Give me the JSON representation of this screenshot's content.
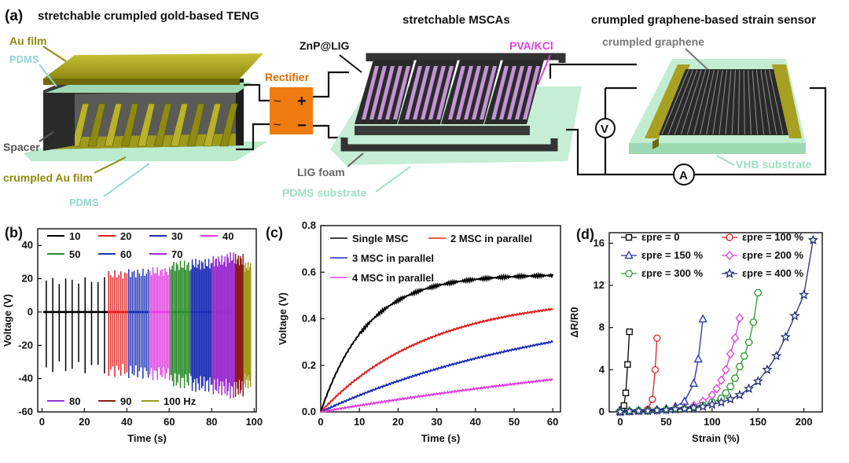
{
  "panel_a": {
    "label": "(a)",
    "teng": {
      "title": "stretchable crumpled gold-based TENG",
      "au_film": "Au film",
      "pdms_top": "PDMS",
      "spacer": "Spacer",
      "crumpled_au": "crumpled Au film",
      "pdms_bottom": "PDMS"
    },
    "rectifier": {
      "label": "Rectifier",
      "ac": "~",
      "plus": "+",
      "minus": "−"
    },
    "msca": {
      "title": "stretchable MSCAs",
      "znp": "ZnP@LIG",
      "pva": "PVA/KCl",
      "lig_foam": "LIG foam",
      "pdms_substrate": "PDMS substrate"
    },
    "sensor": {
      "title": "crumpled graphene-based strain sensor",
      "crumpled_graphene": "crumpled graphene",
      "vhb": "VHB substrate",
      "voltmeter": "V",
      "ammeter": "A"
    }
  },
  "chart_data": [
    {
      "panel": "(b)",
      "type": "line",
      "title": "",
      "xlabel": "Time (s)",
      "ylabel": "Voltage (V)",
      "xlim": [
        -2,
        101
      ],
      "ylim": [
        -60,
        50
      ],
      "xticks": [
        0,
        20,
        40,
        60,
        80,
        100
      ],
      "yticks": [
        -60,
        -40,
        -20,
        0,
        20,
        40
      ],
      "series": [
        {
          "name": "10",
          "color": "#000000",
          "t_start": 0.5,
          "t_end": 31,
          "pos": 21,
          "neg": -37
        },
        {
          "name": "20",
          "color": "#e02020",
          "t_start": 31,
          "t_end": 40.5,
          "pos": 25,
          "neg": -39
        },
        {
          "name": "30",
          "color": "#1f2fb5",
          "t_start": 40.5,
          "t_end": 50.5,
          "pos": 26,
          "neg": -40
        },
        {
          "name": "40",
          "color": "#e040e0",
          "t_start": 50.5,
          "t_end": 60.5,
          "pos": 27,
          "neg": -41
        },
        {
          "name": "50",
          "color": "#2e8b2e",
          "t_start": 60.5,
          "t_end": 70,
          "pos": 31,
          "neg": -46
        },
        {
          "name": "60",
          "color": "#1f2fb5",
          "t_start": 70,
          "t_end": 80,
          "pos": 32,
          "neg": -48
        },
        {
          "name": "70",
          "color": "#9b30d0",
          "t_start": 80,
          "t_end": 87,
          "pos": 34,
          "neg": -50
        },
        {
          "name": "80",
          "color": "#9b30d0",
          "t_start": 87,
          "t_end": 91,
          "pos": 36,
          "neg": -52
        },
        {
          "name": "90",
          "color": "#8b1a1a",
          "t_start": 91,
          "t_end": 95,
          "pos": 35,
          "neg": -51
        },
        {
          "name": "100 Hz",
          "color": "#9c9c1a",
          "t_start": 95,
          "t_end": 98.5,
          "pos": 30,
          "neg": -46
        }
      ]
    },
    {
      "panel": "(c)",
      "type": "line",
      "title": "",
      "xlabel": "Time (s)",
      "ylabel": "Voltage (V)",
      "xlim": [
        0,
        62
      ],
      "ylim": [
        0,
        0.8
      ],
      "xticks": [
        0,
        10,
        20,
        30,
        40,
        50,
        60
      ],
      "yticks": [
        0.0,
        0.2,
        0.4,
        0.6,
        0.8
      ],
      "ytick_labels": [
        "0.0",
        "0.2",
        "0.4",
        "0.6",
        "0.8"
      ],
      "series": [
        {
          "name": "Single MSC",
          "color": "#000000",
          "vmax": 0.59,
          "tau": 12
        },
        {
          "name": "2 MSC in parallel",
          "color": "#e02020",
          "vmax": 0.5,
          "tau": 28
        },
        {
          "name": "3 MSC in parallel",
          "color": "#1f2fb5",
          "vmax": 0.5,
          "tau": 65
        },
        {
          "name": "4 MSC in parallel",
          "color": "#e040e0",
          "vmax": 0.4,
          "tau": 140
        }
      ]
    },
    {
      "panel": "(d)",
      "type": "line",
      "title": "",
      "xlabel": "Strain (%)",
      "ylabel": "ΔR/R0",
      "xlim": [
        -12,
        220
      ],
      "ylim": [
        0,
        17
      ],
      "xticks": [
        0,
        50,
        100,
        150,
        200
      ],
      "yticks": [
        0,
        4,
        8,
        12,
        16
      ],
      "series": [
        {
          "name": "εpre = 0",
          "color": "#000000",
          "marker": "square",
          "x": [
            0,
            2,
            4,
            6,
            8,
            10
          ],
          "y": [
            0,
            0.2,
            0.6,
            1.8,
            4.5,
            7.6
          ]
        },
        {
          "name": "εpre = 100 %",
          "color": "#e02020",
          "marker": "circle",
          "x": [
            0,
            10,
            20,
            30,
            35,
            38,
            40
          ],
          "y": [
            0,
            0.05,
            0.1,
            0.25,
            1.2,
            4,
            7.0
          ]
        },
        {
          "name": "εpre = 150 %",
          "color": "#1f2fb5",
          "marker": "triangle",
          "x": [
            0,
            10,
            20,
            30,
            40,
            50,
            60,
            70,
            80,
            85,
            90
          ],
          "y": [
            0,
            0.05,
            0.1,
            0.15,
            0.2,
            0.3,
            0.5,
            1.0,
            2.7,
            5,
            8.8
          ]
        },
        {
          "name": "εpre = 200 %",
          "color": "#e040e0",
          "marker": "diamond",
          "x": [
            0,
            10,
            20,
            30,
            40,
            50,
            60,
            70,
            80,
            90,
            100,
            105,
            110,
            115,
            120,
            125,
            130
          ],
          "y": [
            0,
            0.05,
            0.1,
            0.1,
            0.15,
            0.2,
            0.3,
            0.4,
            0.6,
            1.0,
            1.6,
            2.2,
            3.0,
            4.0,
            5.5,
            7.0,
            8.9
          ]
        },
        {
          "name": "εpre = 300 %",
          "color": "#2e9b2e",
          "marker": "hexagon",
          "x": [
            0,
            10,
            20,
            30,
            40,
            50,
            60,
            70,
            80,
            90,
            100,
            110,
            115,
            120,
            125,
            130,
            135,
            140,
            145,
            150
          ],
          "y": [
            0,
            0.05,
            0.1,
            0.1,
            0.15,
            0.2,
            0.25,
            0.3,
            0.4,
            0.6,
            0.9,
            1.3,
            1.8,
            2.4,
            3.2,
            4.3,
            5.3,
            6.6,
            8.5,
            11.3
          ]
        },
        {
          "name": "εpre = 400 %",
          "color": "#1f2f7a",
          "marker": "star",
          "x": [
            0,
            10,
            20,
            30,
            40,
            50,
            60,
            70,
            80,
            90,
            100,
            110,
            120,
            130,
            140,
            150,
            160,
            170,
            180,
            190,
            200,
            210
          ],
          "y": [
            0,
            0.05,
            0.1,
            0.1,
            0.15,
            0.2,
            0.25,
            0.3,
            0.4,
            0.5,
            0.7,
            0.9,
            1.2,
            1.6,
            2.2,
            2.9,
            4.0,
            5.3,
            7.1,
            9.1,
            11.1,
            16.3
          ]
        }
      ]
    }
  ]
}
